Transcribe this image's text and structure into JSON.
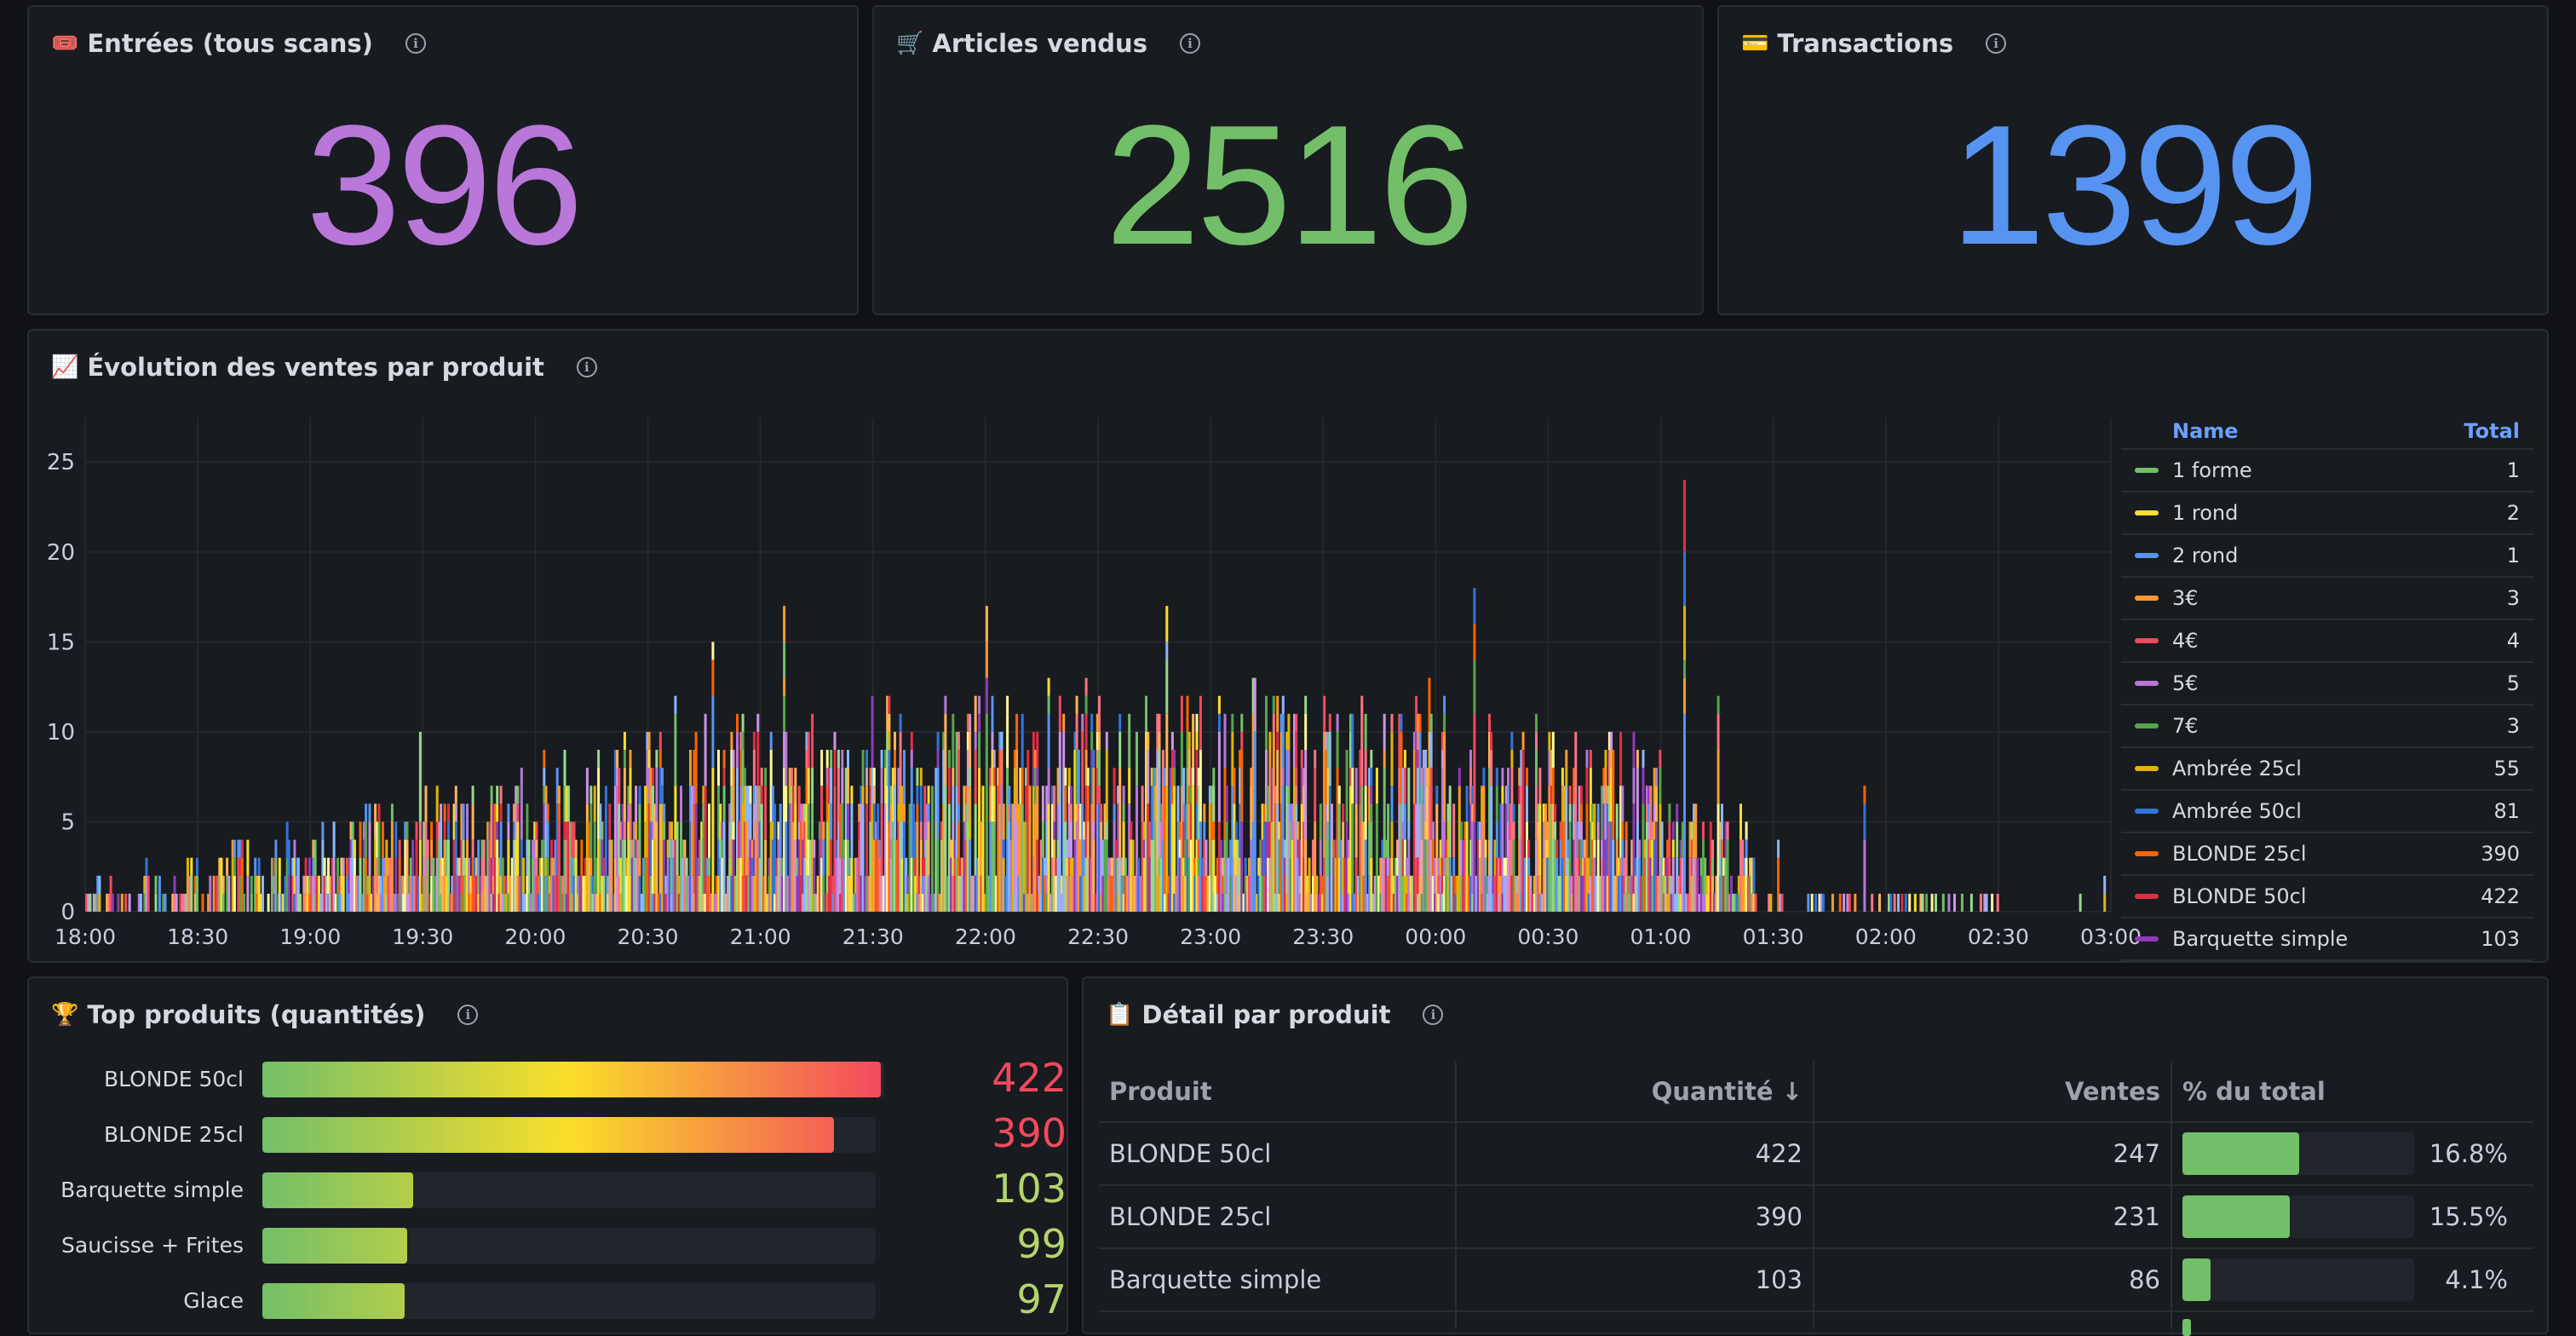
{
  "stats": [
    {
      "icon": "ticket-icon",
      "emoji": "🎟️",
      "title": "Entrées (tous scans)",
      "value": "396",
      "color": "#b877d9"
    },
    {
      "icon": "cart-icon",
      "emoji": "🛒",
      "title": "Articles vendus",
      "value": "2516",
      "color": "#73bf69"
    },
    {
      "icon": "card-icon",
      "emoji": "💳",
      "title": "Transactions",
      "value": "1399",
      "color": "#5794f2"
    }
  ],
  "evolution": {
    "emoji": "📈",
    "title": "Évolution des ventes par produit",
    "legend_headers": {
      "name": "Name",
      "total": "Total"
    },
    "legend": [
      {
        "name": "1 forme",
        "total": "1",
        "color": "#73bf69"
      },
      {
        "name": "1 rond",
        "total": "2",
        "color": "#fade2a"
      },
      {
        "name": "2 rond",
        "total": "1",
        "color": "#5794f2"
      },
      {
        "name": "3€",
        "total": "3",
        "color": "#ff9830"
      },
      {
        "name": "4€",
        "total": "4",
        "color": "#f2495c"
      },
      {
        "name": "5€",
        "total": "5",
        "color": "#b877d9"
      },
      {
        "name": "7€",
        "total": "3",
        "color": "#56a64b"
      },
      {
        "name": "Ambrée 25cl",
        "total": "55",
        "color": "#e0b400"
      },
      {
        "name": "Ambrée 50cl",
        "total": "81",
        "color": "#3274d9"
      },
      {
        "name": "BLONDE 25cl",
        "total": "390",
        "color": "#fa6400"
      },
      {
        "name": "BLONDE 50cl",
        "total": "422",
        "color": "#e02f44"
      },
      {
        "name": "Barquette simple",
        "total": "103",
        "color": "#8f3bb8"
      }
    ]
  },
  "chart_data": {
    "type": "bar",
    "title": "Évolution des ventes par produit",
    "x_ticks": [
      "18:00",
      "18:30",
      "19:00",
      "19:30",
      "20:00",
      "20:30",
      "21:00",
      "21:30",
      "22:00",
      "22:30",
      "23:00",
      "23:30",
      "00:00",
      "00:30",
      "01:00",
      "01:30",
      "02:00",
      "02:30",
      "03:00"
    ],
    "y_ticks": [
      0,
      5,
      10,
      15,
      20,
      25
    ],
    "ylim": [
      0,
      27
    ],
    "stacked": true,
    "grid": true,
    "legend_position": "right",
    "peak_totals": [
      {
        "time": "18:37",
        "value": 7
      },
      {
        "time": "19:29",
        "value": 10
      },
      {
        "time": "20:37",
        "value": 12
      },
      {
        "time": "20:47",
        "value": 15
      },
      {
        "time": "21:06",
        "value": 17
      },
      {
        "time": "22:00",
        "value": 17
      },
      {
        "time": "22:48",
        "value": 17
      },
      {
        "time": "23:11",
        "value": 13
      },
      {
        "time": "23:58",
        "value": 13
      },
      {
        "time": "00:10",
        "value": 18
      },
      {
        "time": "01:06",
        "value": 24
      },
      {
        "time": "01:15",
        "value": 12
      },
      {
        "time": "01:31",
        "value": 4
      },
      {
        "time": "01:54",
        "value": 7
      },
      {
        "time": "02:00",
        "value": 4
      },
      {
        "time": "02:58",
        "value": 2
      }
    ]
  },
  "top_products": {
    "emoji": "🏆",
    "title": "Top produits (quantités)",
    "max": 422,
    "items": [
      {
        "label": "BLONDE 50cl",
        "value": 422,
        "value_text": "422",
        "color": "#f2495c"
      },
      {
        "label": "BLONDE 25cl",
        "value": 390,
        "value_text": "390",
        "color": "#f2495c"
      },
      {
        "label": "Barquette simple",
        "value": 103,
        "value_text": "103",
        "color": "#b5d36d"
      },
      {
        "label": "Saucisse + Frites",
        "value": 99,
        "value_text": "99",
        "color": "#b5d36d"
      },
      {
        "label": "Glace",
        "value": 97,
        "value_text": "97",
        "color": "#b5d36d"
      }
    ]
  },
  "detail": {
    "emoji": "📋",
    "title": "Détail par produit",
    "headers": {
      "produit": "Produit",
      "quantite": "Quantité ↓",
      "ventes": "Ventes",
      "pct": "% du total"
    },
    "rows": [
      {
        "produit": "BLONDE 50cl",
        "quantite": "422",
        "ventes": "247",
        "pct_value": 16.8,
        "pct": "16.8%"
      },
      {
        "produit": "BLONDE 25cl",
        "quantite": "390",
        "ventes": "231",
        "pct_value": 15.5,
        "pct": "15.5%"
      },
      {
        "produit": "Barquette simple",
        "quantite": "103",
        "ventes": "86",
        "pct_value": 4.1,
        "pct": "4.1%"
      }
    ]
  }
}
